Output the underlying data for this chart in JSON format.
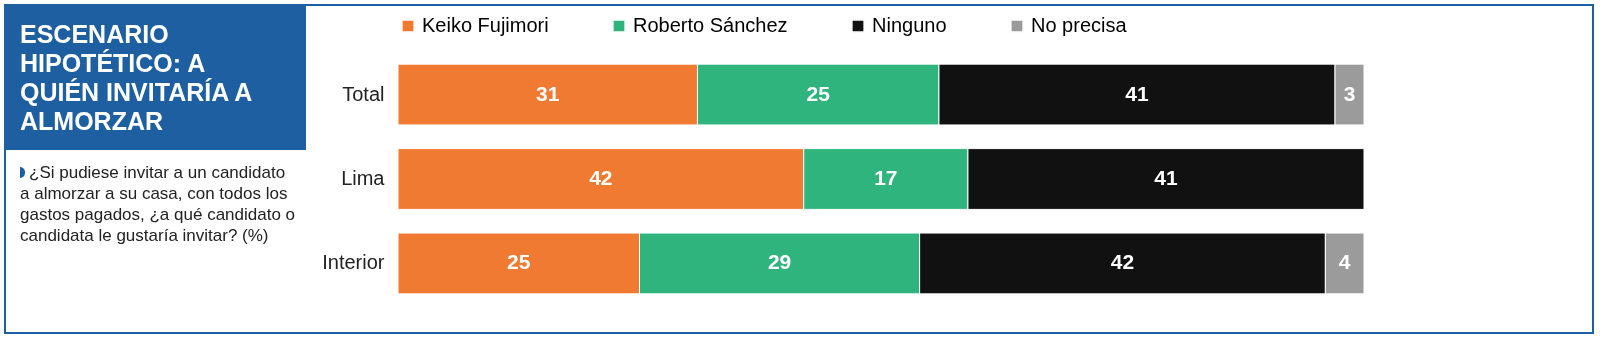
{
  "chart_data": {
    "type": "bar",
    "orientation": "horizontal",
    "stacked": true,
    "title": "ESCENARIO HIPOTÉTICO: A QUIÉN INVITARÍA A ALMORZAR",
    "subtitle": "¿Si pudiese invitar a un candidato a almorzar a su casa, con todos los gastos pagados, ¿a qué candidato o candidata le gustaría invitar? (%)",
    "categories": [
      "Total",
      "Lima",
      "Interior"
    ],
    "series": [
      {
        "name": "Keiko Fujimori",
        "color": "#f07a32",
        "values": [
          31,
          42,
          25
        ]
      },
      {
        "name": "Roberto Sánchez",
        "color": "#2fb47e",
        "values": [
          25,
          17,
          29
        ]
      },
      {
        "name": "Ninguno",
        "color": "#111111",
        "values": [
          41,
          41,
          42
        ]
      },
      {
        "name": "No precisa",
        "color": "#9b9b9b",
        "values": [
          3,
          null,
          4
        ]
      }
    ],
    "xlim": [
      0,
      100
    ],
    "tick_labels": "y",
    "data_labels": true,
    "legend": "top"
  }
}
